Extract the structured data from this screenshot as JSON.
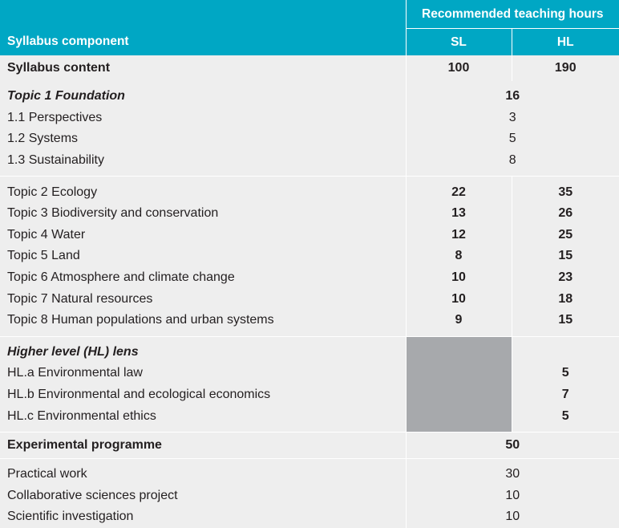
{
  "header": {
    "component_label": "Syllabus component",
    "hours_label": "Recommended teaching hours",
    "sl_label": "SL",
    "hl_label": "HL"
  },
  "syllabus_content": {
    "label": "Syllabus content",
    "sl": "100",
    "hl": "190"
  },
  "topic1": {
    "label": "Topic 1 Foundation",
    "hours": "16",
    "subtopics": [
      {
        "label": "1.1 Perspectives",
        "hours": "3"
      },
      {
        "label": "1.2 Systems",
        "hours": "5"
      },
      {
        "label": "1.3 Sustainability",
        "hours": "8"
      }
    ]
  },
  "topics": [
    {
      "label": "Topic 2 Ecology",
      "sl": "22",
      "hl": "35"
    },
    {
      "label": "Topic 3 Biodiversity and conservation",
      "sl": "13",
      "hl": "26"
    },
    {
      "label": "Topic 4 Water",
      "sl": "12",
      "hl": "25"
    },
    {
      "label": "Topic 5 Land",
      "sl": "8",
      "hl": "15"
    },
    {
      "label": "Topic 6 Atmosphere and climate change",
      "sl": "10",
      "hl": "23"
    },
    {
      "label": "Topic 7 Natural resources",
      "sl": "10",
      "hl": "18"
    },
    {
      "label": "Topic 8 Human populations and urban systems",
      "sl": "9",
      "hl": "15"
    }
  ],
  "hl_lens": {
    "label": "Higher level (HL) lens",
    "items": [
      {
        "label": "HL.a Environmental law",
        "hl": "5"
      },
      {
        "label": "HL.b Environmental and ecological economics",
        "hl": "7"
      },
      {
        "label": "HL.c Environmental ethics",
        "hl": "5"
      }
    ]
  },
  "experimental": {
    "label": "Experimental programme",
    "hours": "50",
    "items": [
      {
        "label": "Practical work",
        "hours": "30"
      },
      {
        "label": "Collaborative sciences project",
        "hours": "10"
      },
      {
        "label": "Scientific investigation",
        "hours": "10"
      }
    ]
  },
  "colors": {
    "header_bg": "#00a7c4",
    "band_bg": "#eeeeee",
    "hatch": "#a7a9ac"
  }
}
